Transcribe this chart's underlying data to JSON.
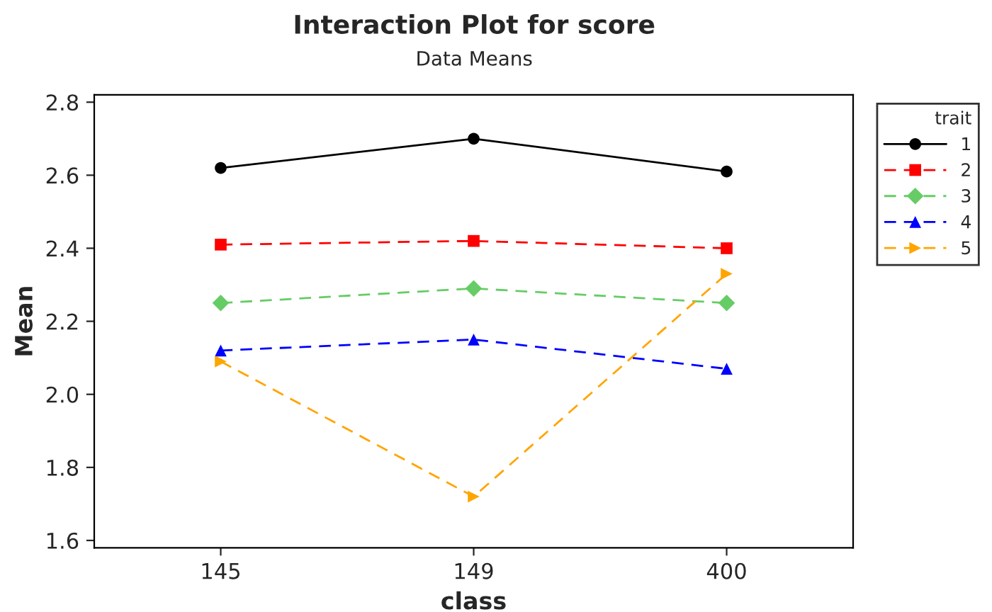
{
  "chart_data": {
    "type": "line",
    "title": "Interaction Plot for score",
    "subtitle": "Data Means",
    "xlabel": "class",
    "ylabel": "Mean",
    "legend_title": "trait",
    "categories": [
      "145",
      "149",
      "400"
    ],
    "series": [
      {
        "name": "1",
        "color": "#000000",
        "marker": "circle",
        "line_style": "solid",
        "values": [
          2.62,
          2.7,
          2.61
        ]
      },
      {
        "name": "2",
        "color": "#ff0000",
        "marker": "square",
        "line_style": "dashed",
        "values": [
          2.41,
          2.42,
          2.4
        ]
      },
      {
        "name": "3",
        "color": "#66cc66",
        "marker": "diamond",
        "line_style": "dashed",
        "values": [
          2.25,
          2.29,
          2.25
        ]
      },
      {
        "name": "4",
        "color": "#0000ff",
        "marker": "triangle",
        "line_style": "dashed",
        "values": [
          2.12,
          2.15,
          2.07
        ]
      },
      {
        "name": "5",
        "color": "#ffa500",
        "marker": "triangle_right",
        "line_style": "dashed",
        "values": [
          2.09,
          1.72,
          2.33
        ]
      }
    ],
    "ylim": [
      1.58,
      2.82
    ],
    "yticks": [
      1.6,
      1.8,
      {
        "value": 2,
        "label": "2.0"
      },
      2.2,
      2.4,
      2.6,
      2.8
    ],
    "grid": false,
    "legend": "right"
  }
}
